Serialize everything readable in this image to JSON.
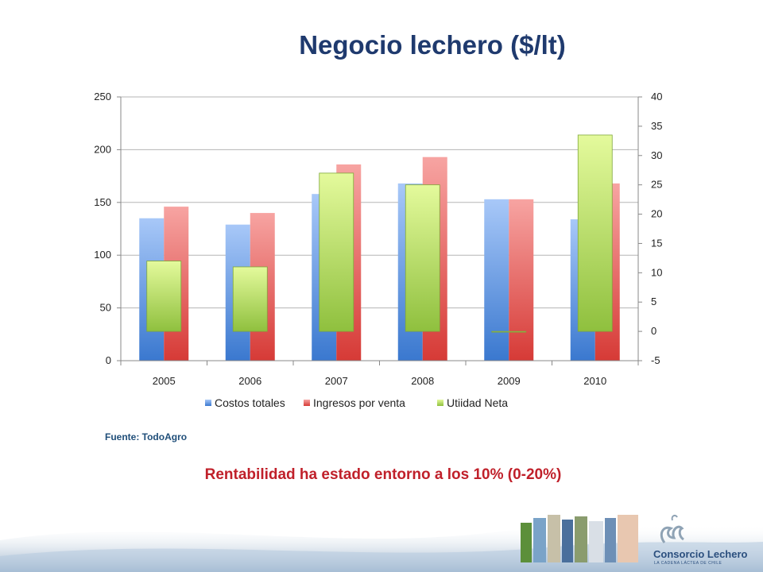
{
  "slide": {
    "title": "Negocio lechero ($/lt)",
    "source": "Fuente: TodoAgro",
    "conclusion": "Rentabilidad ha estado entorno a los 10% (0-20%)",
    "logo": {
      "name": "Consorcio Lechero",
      "tagline": "LA CADENA LÁCTEA DE CHILE"
    }
  },
  "chart_data": {
    "type": "bar",
    "title": "",
    "categories": [
      "2005",
      "2006",
      "2007",
      "2008",
      "2009",
      "2010"
    ],
    "series": [
      {
        "name": "Costos totales",
        "axis": "left",
        "color": "#4f81bd",
        "values": [
          135,
          129,
          158,
          168,
          153,
          134
        ]
      },
      {
        "name": "Ingresos por venta",
        "axis": "left",
        "color": "#e0504d",
        "values": [
          146,
          140,
          186,
          193,
          153,
          168
        ]
      },
      {
        "name": "Utiidad Neta",
        "axis": "right",
        "color": "#9bbb59",
        "values": [
          12,
          11,
          27,
          25,
          0,
          33.5
        ]
      }
    ],
    "y_left": {
      "min": 0,
      "max": 250,
      "ticks": [
        "0",
        "50",
        "100",
        "150",
        "200",
        "250"
      ]
    },
    "y_right": {
      "min": -5,
      "max": 40,
      "ticks": [
        "-5",
        "0",
        "5",
        "10",
        "15",
        "20",
        "25",
        "30",
        "35",
        "40"
      ]
    },
    "grid": true,
    "legend": "bottom"
  },
  "colors": {
    "title": "#1f3a6e",
    "conclusion": "#c0202a",
    "source": "#1f4e79"
  }
}
